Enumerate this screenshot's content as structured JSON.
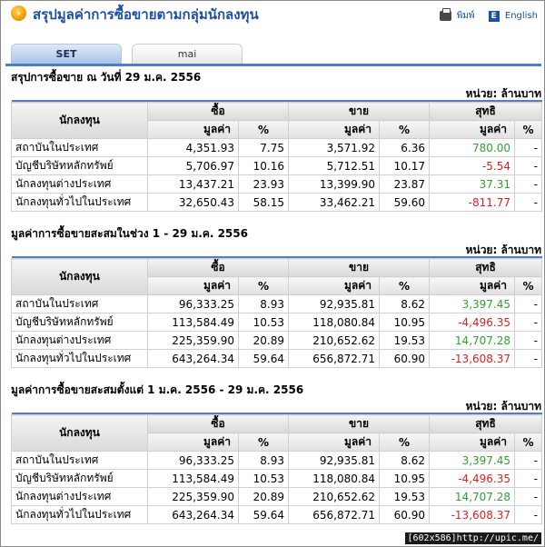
{
  "header": {
    "title": "สรุปมูลค่าการซื้อขายตามกลุ่มนักลงทุน",
    "print_label": "พิมพ์",
    "lang_label": "English"
  },
  "tabs": [
    {
      "label": "SET",
      "active": true
    },
    {
      "label": "mai",
      "active": false
    }
  ],
  "unit_label": "หน่วย: ล้านบาท",
  "table_headers": {
    "investor": "นักลงทุน",
    "buy": "ซื้อ",
    "sell": "ขาย",
    "net": "สุทธิ",
    "value": "มูลค่า",
    "percent": "%"
  },
  "sections": [
    {
      "title": "สรุปการซื้อขาย ณ วันที่ 29 ม.ค. 2556",
      "rows": [
        {
          "name": "สถาบันในประเทศ",
          "buy_value": "4,351.93",
          "buy_pct": "7.75",
          "sell_value": "3,571.92",
          "sell_pct": "6.36",
          "net_value": "780.00",
          "net_pct": "-",
          "net_sign": "pos"
        },
        {
          "name": "บัญชีบริษัทหลักทรัพย์",
          "buy_value": "5,706.97",
          "buy_pct": "10.16",
          "sell_value": "5,712.51",
          "sell_pct": "10.17",
          "net_value": "-5.54",
          "net_pct": "-",
          "net_sign": "neg"
        },
        {
          "name": "นักลงทุนต่างประเทศ",
          "buy_value": "13,437.21",
          "buy_pct": "23.93",
          "sell_value": "13,399.90",
          "sell_pct": "23.87",
          "net_value": "37.31",
          "net_pct": "-",
          "net_sign": "pos"
        },
        {
          "name": "นักลงทุนทั่วไปในประเทศ",
          "buy_value": "32,650.43",
          "buy_pct": "58.15",
          "sell_value": "33,462.21",
          "sell_pct": "59.60",
          "net_value": "-811.77",
          "net_pct": "-",
          "net_sign": "neg"
        }
      ]
    },
    {
      "title": "มูลค่าการซื้อขายสะสมในช่วง 1 - 29 ม.ค. 2556",
      "rows": [
        {
          "name": "สถาบันในประเทศ",
          "buy_value": "96,333.25",
          "buy_pct": "8.93",
          "sell_value": "92,935.81",
          "sell_pct": "8.62",
          "net_value": "3,397.45",
          "net_pct": "-",
          "net_sign": "pos"
        },
        {
          "name": "บัญชีบริษัทหลักทรัพย์",
          "buy_value": "113,584.49",
          "buy_pct": "10.53",
          "sell_value": "118,080.84",
          "sell_pct": "10.95",
          "net_value": "-4,496.35",
          "net_pct": "-",
          "net_sign": "neg"
        },
        {
          "name": "นักลงทุนต่างประเทศ",
          "buy_value": "225,359.90",
          "buy_pct": "20.89",
          "sell_value": "210,652.62",
          "sell_pct": "19.53",
          "net_value": "14,707.28",
          "net_pct": "-",
          "net_sign": "pos"
        },
        {
          "name": "นักลงทุนทั่วไปในประเทศ",
          "buy_value": "643,264.34",
          "buy_pct": "59.64",
          "sell_value": "656,872.71",
          "sell_pct": "60.90",
          "net_value": "-13,608.37",
          "net_pct": "-",
          "net_sign": "neg"
        }
      ]
    },
    {
      "title": "มูลค่าการซื้อขายสะสมตั้งแต่ 1 ม.ค. 2556 - 29 ม.ค. 2556",
      "rows": [
        {
          "name": "สถาบันในประเทศ",
          "buy_value": "96,333.25",
          "buy_pct": "8.93",
          "sell_value": "92,935.81",
          "sell_pct": "8.62",
          "net_value": "3,397.45",
          "net_pct": "-",
          "net_sign": "pos"
        },
        {
          "name": "บัญชีบริษัทหลักทรัพย์",
          "buy_value": "113,584.49",
          "buy_pct": "10.53",
          "sell_value": "118,080.84",
          "sell_pct": "10.95",
          "net_value": "-4,496.35",
          "net_pct": "-",
          "net_sign": "neg"
        },
        {
          "name": "นักลงทุนต่างประเทศ",
          "buy_value": "225,359.90",
          "buy_pct": "20.89",
          "sell_value": "210,652.62",
          "sell_pct": "19.53",
          "net_value": "14,707.28",
          "net_pct": "-",
          "net_sign": "pos"
        },
        {
          "name": "นักลงทุนทั่วไปในประเทศ",
          "buy_value": "643,264.34",
          "buy_pct": "59.64",
          "sell_value": "656,872.71",
          "sell_pct": "60.90",
          "net_value": "-13,608.37",
          "net_pct": "-",
          "net_sign": "neg"
        }
      ]
    }
  ],
  "footer_label": "[602x586]http://upic.me/",
  "colors": {
    "positive": "#2ea32e",
    "negative": "#e02020",
    "title": "#1b4fa8",
    "accent": "#4f7fc8"
  }
}
